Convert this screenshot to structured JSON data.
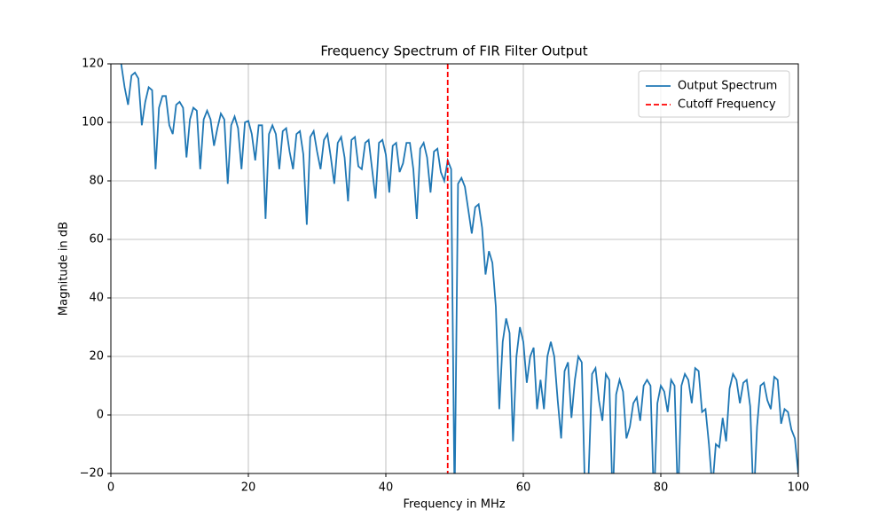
{
  "chart_data": {
    "type": "line",
    "title": "Frequency Spectrum of FIR Filter Output",
    "xlabel": "Frequency in MHz",
    "ylabel": "Magnitude in dB",
    "x": [
      1.5,
      2,
      2.5,
      3,
      3.5,
      4,
      4.5,
      5,
      5.5,
      6,
      6.5,
      7,
      7.5,
      8,
      8.5,
      9,
      9.5,
      10,
      10.5,
      11,
      11.5,
      12,
      12.5,
      13,
      13.5,
      14,
      14.5,
      15,
      15.5,
      16,
      16.5,
      17,
      17.5,
      18,
      18.5,
      19,
      19.5,
      20,
      20.5,
      21,
      21.5,
      22,
      22.5,
      23,
      23.5,
      24,
      24.5,
      25,
      25.5,
      26,
      26.5,
      27,
      27.5,
      28,
      28.5,
      29,
      29.5,
      30,
      30.5,
      31,
      31.5,
      32,
      32.5,
      33,
      33.5,
      34,
      34.5,
      35,
      35.5,
      36,
      36.5,
      37,
      37.5,
      38,
      38.5,
      39,
      39.5,
      40,
      40.5,
      41,
      41.5,
      42,
      42.5,
      43,
      43.5,
      44,
      44.5,
      45,
      45.5,
      46,
      46.5,
      47,
      47.5,
      48,
      48.5,
      49,
      49.5,
      50,
      50.5,
      51,
      51.5,
      52,
      52.5,
      53,
      53.5,
      54,
      54.5,
      55,
      55.5,
      56,
      56.5,
      57,
      57.5,
      58,
      58.5,
      59,
      59.5,
      60,
      60.5,
      61,
      61.5,
      62,
      62.5,
      63,
      63.5,
      64,
      64.5,
      65,
      65.5,
      66,
      66.5,
      67,
      67.5,
      68,
      68.5,
      69,
      69.5,
      70,
      70.5,
      71,
      71.5,
      72,
      72.5,
      73,
      73.5,
      74,
      74.5,
      75,
      75.5,
      76,
      76.5,
      77,
      77.5,
      78,
      78.5,
      79,
      79.5,
      80,
      80.5,
      81,
      81.5,
      82,
      82.5,
      83,
      83.5,
      84,
      84.5,
      85,
      85.5,
      86,
      86.5,
      87,
      87.5,
      88,
      88.5,
      89,
      89.5,
      90,
      90.5,
      91,
      91.5,
      92,
      92.5,
      93,
      93.5,
      94,
      94.5,
      95,
      95.5,
      96,
      96.5,
      97,
      97.5,
      98,
      98.5,
      99,
      99.5,
      100
    ],
    "series": [
      {
        "name": "Output Spectrum",
        "color": "#1f77b4",
        "values": [
          120,
          112,
          106,
          116,
          117,
          115,
          99,
          107,
          112,
          111,
          84,
          105,
          109,
          109,
          99,
          96,
          106,
          107,
          105,
          88,
          101,
          105,
          104,
          84,
          101,
          104,
          101,
          92,
          98,
          103,
          101,
          79,
          99,
          102,
          98,
          84,
          100,
          100.5,
          96,
          87,
          99,
          99,
          67,
          96,
          99,
          96,
          84,
          97,
          98,
          90,
          84,
          96,
          97,
          89,
          65,
          95,
          97,
          90,
          84,
          94,
          96,
          88,
          79,
          93,
          95,
          88,
          73,
          94,
          95,
          85,
          84,
          93,
          94,
          84,
          74,
          93,
          94,
          89,
          76,
          92,
          93,
          83,
          86,
          93,
          93,
          84,
          67,
          91,
          93,
          88,
          76,
          90,
          91,
          83,
          80,
          87,
          84,
          -30,
          79,
          81,
          78,
          70,
          62,
          71,
          72,
          64,
          48,
          56,
          52,
          37,
          2,
          25,
          33,
          28,
          -9,
          20,
          30,
          25,
          11,
          20,
          23,
          2,
          12,
          2,
          20,
          25,
          20,
          5,
          -8,
          15,
          18,
          -1,
          12,
          20,
          18,
          -30,
          -20,
          14,
          16,
          5,
          -2,
          14,
          12,
          -30,
          7,
          12,
          8,
          -8,
          -4,
          4,
          6,
          -2,
          10,
          12,
          10,
          -30,
          4,
          10,
          8,
          1,
          12,
          10,
          -30,
          10,
          14,
          12,
          4,
          16,
          15,
          1,
          2,
          -10,
          -25,
          -10,
          -11,
          -1,
          -9,
          9,
          14,
          12,
          4,
          11,
          12,
          3,
          -30,
          -4,
          10,
          11,
          5,
          2,
          13,
          12,
          -3,
          2,
          1,
          -5,
          -8,
          -20
        ]
      }
    ],
    "vlines": [
      {
        "name": "Cutoff Frequency",
        "x": 49,
        "color": "#ff0000"
      }
    ],
    "xlim": [
      0,
      100
    ],
    "xticks": [
      0,
      20,
      40,
      60,
      80,
      100
    ],
    "ylim": [
      -20,
      120
    ],
    "yticks": [
      {
        "value": -20,
        "label": "−20"
      },
      0,
      20,
      40,
      60,
      80,
      100,
      120
    ],
    "grid": true,
    "legend": "upper right"
  }
}
